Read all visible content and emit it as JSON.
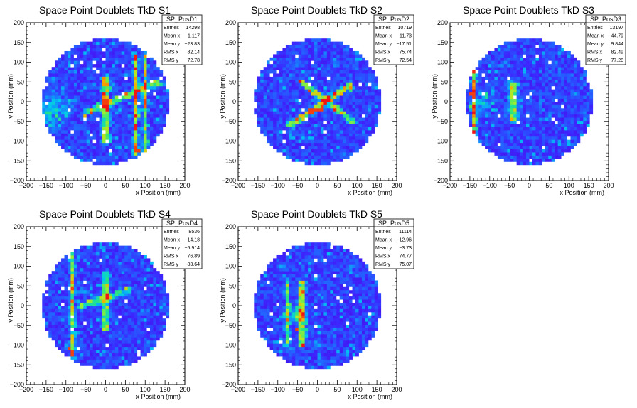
{
  "chart_data": [
    {
      "type": "heatmap",
      "title": "Space Point Doublets TkD S1",
      "xlabel": "x Position (mm)",
      "ylabel": "y Position (mm)",
      "xlim": [
        -200,
        200
      ],
      "ylim": [
        -200,
        200
      ],
      "xticks": [
        "−200",
        "−150",
        "−100",
        "−50",
        "0",
        "50",
        "100",
        "150",
        "200"
      ],
      "yticks": [
        "−200",
        "−150",
        "−100",
        "−50",
        "0",
        "50",
        "100",
        "150",
        "200"
      ],
      "stats": {
        "name": "SP_PosD1",
        "rows": [
          {
            "label": "Entries",
            "value": "14298"
          },
          {
            "label": "Mean x",
            "value": "1.117"
          },
          {
            "label": "Mean y",
            "value": "−23.83"
          },
          {
            "label": "RMS x",
            "value": "82.14"
          },
          {
            "label": "RMS y",
            "value": "72.78"
          }
        ]
      },
      "disk": {
        "center": [
          0,
          0
        ],
        "radius": 160
      },
      "features": [
        {
          "kind": "line",
          "from": [
            0,
            60
          ],
          "to": [
            0,
            -100
          ],
          "intensity": 0.55
        },
        {
          "kind": "line",
          "from": [
            75,
            115
          ],
          "to": [
            75,
            -130
          ],
          "intensity": 0.7
        },
        {
          "kind": "line",
          "from": [
            100,
            115
          ],
          "to": [
            100,
            -130
          ],
          "intensity": 0.55
        },
        {
          "kind": "line",
          "from": [
            -50,
            -30
          ],
          "to": [
            130,
            50
          ],
          "intensity": 0.45
        },
        {
          "kind": "blob",
          "at": [
            -130,
            -20
          ],
          "radius": 60,
          "intensity": 0.3
        }
      ],
      "hot": [
        [
          75,
          -120
        ],
        [
          80,
          -125
        ],
        [
          100,
          0
        ],
        [
          0,
          0
        ]
      ]
    },
    {
      "type": "heatmap",
      "title": "Space Point Doublets TkD S2",
      "xlabel": "x Position (mm)",
      "ylabel": "y Position (mm)",
      "xlim": [
        -200,
        200
      ],
      "ylim": [
        -200,
        200
      ],
      "xticks": [
        "−200",
        "−150",
        "−100",
        "−50",
        "0",
        "50",
        "100",
        "150",
        "200"
      ],
      "yticks": [
        "−200",
        "−150",
        "−100",
        "−50",
        "0",
        "50",
        "100",
        "150",
        "200"
      ],
      "stats": {
        "name": "SP_PosD2",
        "rows": [
          {
            "label": "Entries",
            "value": "10719"
          },
          {
            "label": "Mean x",
            "value": "11.73"
          },
          {
            "label": "Mean y",
            "value": "−17.51"
          },
          {
            "label": "RMS x",
            "value": "75.74"
          },
          {
            "label": "RMS y",
            "value": "72.54"
          }
        ]
      },
      "disk": {
        "center": [
          0,
          0
        ],
        "radius": 160
      },
      "features": [
        {
          "kind": "line",
          "from": [
            -70,
            -60
          ],
          "to": [
            80,
            40
          ],
          "intensity": 0.6
        },
        {
          "kind": "line",
          "from": [
            -40,
            50
          ],
          "to": [
            90,
            -50
          ],
          "intensity": 0.5
        }
      ],
      "hot": [
        [
          0,
          -20
        ],
        [
          10,
          -15
        ],
        [
          -15,
          -25
        ]
      ]
    },
    {
      "type": "heatmap",
      "title": "Space Point Doublets TkD S3",
      "xlabel": "x Position (mm)",
      "ylabel": "y Position (mm)",
      "xlim": [
        -200,
        200
      ],
      "ylim": [
        -200,
        200
      ],
      "xticks": [
        "−200",
        "−150",
        "−100",
        "−50",
        "0",
        "50",
        "100",
        "150",
        "200"
      ],
      "yticks": [
        "−200",
        "−150",
        "−100",
        "−50",
        "0",
        "50",
        "100",
        "150",
        "200"
      ],
      "stats": {
        "name": "SP_PosD3",
        "rows": [
          {
            "label": "Entries",
            "value": "13197"
          },
          {
            "label": "Mean x",
            "value": "−44.79"
          },
          {
            "label": "Mean y",
            "value": "9.844"
          },
          {
            "label": "RMS x",
            "value": "82.49"
          },
          {
            "label": "RMS y",
            "value": "77.28"
          }
        ]
      },
      "disk": {
        "center": [
          0,
          0
        ],
        "radius": 160
      },
      "features": [
        {
          "kind": "line",
          "from": [
            -140,
            110
          ],
          "to": [
            -140,
            -100
          ],
          "intensity": 0.65
        },
        {
          "kind": "line",
          "from": [
            -40,
            40
          ],
          "to": [
            -40,
            -40
          ],
          "intensity": 0.5
        },
        {
          "kind": "blob",
          "at": [
            -120,
            0
          ],
          "radius": 40,
          "intensity": 0.25
        }
      ],
      "hot": [
        [
          -145,
          20
        ],
        [
          -140,
          10
        ]
      ]
    },
    {
      "type": "heatmap",
      "title": "Space Point Doublets TkD S4",
      "xlabel": "x Position (mm)",
      "ylabel": "y Position (mm)",
      "xlim": [
        -200,
        200
      ],
      "ylim": [
        -200,
        200
      ],
      "xticks": [
        "−200",
        "−150",
        "−100",
        "−50",
        "0",
        "50",
        "100",
        "150",
        "200"
      ],
      "yticks": [
        "−200",
        "−150",
        "−100",
        "−50",
        "0",
        "50",
        "100",
        "150",
        "200"
      ],
      "stats": {
        "name": "SP_PosD4",
        "rows": [
          {
            "label": "Entries",
            "value": "8536"
          },
          {
            "label": "Mean x",
            "value": "−14.18"
          },
          {
            "label": "Mean y",
            "value": "−5.914"
          },
          {
            "label": "RMS x",
            "value": "76.89"
          },
          {
            "label": "RMS y",
            "value": "83.64"
          }
        ]
      },
      "disk": {
        "center": [
          0,
          0
        ],
        "radius": 160
      },
      "features": [
        {
          "kind": "line",
          "from": [
            -85,
            150
          ],
          "to": [
            -85,
            -120
          ],
          "intensity": 0.55
        },
        {
          "kind": "line",
          "from": [
            0,
            80
          ],
          "to": [
            0,
            -60
          ],
          "intensity": 0.45
        },
        {
          "kind": "line",
          "from": [
            -60,
            0
          ],
          "to": [
            60,
            40
          ],
          "intensity": 0.4
        }
      ],
      "hot": [
        [
          -85,
          -120
        ],
        [
          -90,
          -110
        ]
      ]
    },
    {
      "type": "heatmap",
      "title": "Space Point Doublets TkD S5",
      "xlabel": "x Position (mm)",
      "ylabel": "y Position (mm)",
      "xlim": [
        -200,
        200
      ],
      "ylim": [
        -200,
        200
      ],
      "xticks": [
        "−200",
        "−150",
        "−100",
        "−50",
        "0",
        "50",
        "100",
        "150",
        "200"
      ],
      "yticks": [
        "−200",
        "−150",
        "−100",
        "−50",
        "0",
        "50",
        "100",
        "150",
        "200"
      ],
      "stats": {
        "name": "SP_PosD5",
        "rows": [
          {
            "label": "Entries",
            "value": "11114"
          },
          {
            "label": "Mean x",
            "value": "−12.96"
          },
          {
            "label": "Mean y",
            "value": "−3.73"
          },
          {
            "label": "RMS x",
            "value": "74.77"
          },
          {
            "label": "RMS y",
            "value": "75.07"
          }
        ]
      },
      "disk": {
        "center": [
          0,
          0
        ],
        "radius": 160
      },
      "features": [
        {
          "kind": "line",
          "from": [
            -75,
            60
          ],
          "to": [
            -75,
            -100
          ],
          "intensity": 0.45
        },
        {
          "kind": "line",
          "from": [
            -40,
            60
          ],
          "to": [
            -40,
            -100
          ],
          "intensity": 0.55
        },
        {
          "kind": "blob",
          "at": [
            -55,
            -20
          ],
          "radius": 35,
          "intensity": 0.3
        }
      ],
      "hot": [
        [
          -50,
          -60
        ]
      ]
    }
  ]
}
